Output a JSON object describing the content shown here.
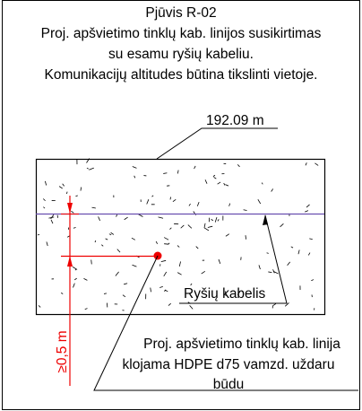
{
  "header": {
    "title": "Pjūvis R-02",
    "lines": [
      "Proj. apšvietimo tinklų kab. linijos susikirtimas",
      "su esamu ryšių kabeliu.",
      "Komunikacijų altitudes būtina tikslinti vietoje."
    ]
  },
  "elevation_label": "192.09 m",
  "existing_cable_label": "Ryšių kabelis",
  "depth_label": "≥0,5 m",
  "new_cable_note": [
    "Proj. apšvietimo tinklų kab. linija",
    "klojama HDPE d75 vamzd. uždaru",
    "būdu"
  ]
}
